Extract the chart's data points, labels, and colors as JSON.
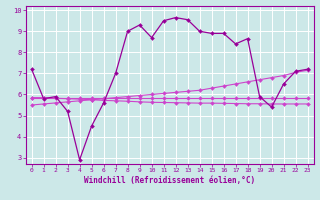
{
  "background_color": "#cce8e8",
  "grid_color": "#ffffff",
  "line_color": "#990099",
  "line_color_diag": "#cc44cc",
  "xlabel": "Windchill (Refroidissement éolien,°C)",
  "xlim": [
    -0.5,
    23.5
  ],
  "ylim": [
    2.7,
    10.2
  ],
  "xticks": [
    0,
    1,
    2,
    3,
    4,
    5,
    6,
    7,
    8,
    9,
    10,
    11,
    12,
    13,
    14,
    15,
    16,
    17,
    18,
    19,
    20,
    21,
    22,
    23
  ],
  "yticks": [
    3,
    4,
    5,
    6,
    7,
    8,
    9,
    10
  ],
  "curve1_x": [
    0,
    1,
    2,
    3,
    4,
    5,
    6,
    7,
    8,
    9,
    10,
    11,
    12,
    13,
    14,
    15,
    16,
    17,
    18,
    19,
    20,
    21,
    22,
    23
  ],
  "curve1_y": [
    7.2,
    5.8,
    5.9,
    5.2,
    2.9,
    4.5,
    5.6,
    7.0,
    9.0,
    9.3,
    8.7,
    9.5,
    9.65,
    9.55,
    9.0,
    8.9,
    8.9,
    8.4,
    8.65,
    5.9,
    5.4,
    6.5,
    7.1,
    7.2
  ],
  "curve2_x": [
    0,
    1,
    2,
    3,
    4,
    5,
    6,
    7,
    8,
    9,
    10,
    11,
    12,
    13,
    14,
    15,
    16,
    17,
    18,
    19,
    20,
    21,
    22,
    23
  ],
  "curve2_y": [
    5.85,
    5.85,
    5.85,
    5.85,
    5.85,
    5.85,
    5.85,
    5.85,
    5.85,
    5.85,
    5.85,
    5.85,
    5.85,
    5.85,
    5.85,
    5.85,
    5.85,
    5.85,
    5.85,
    5.85,
    5.85,
    5.85,
    5.85,
    5.85
  ],
  "curve3_x": [
    0,
    1,
    2,
    3,
    4,
    5,
    6,
    7,
    8,
    9,
    10,
    11,
    12,
    13,
    14,
    15,
    16,
    17,
    18,
    19,
    20,
    21,
    22,
    23
  ],
  "curve3_y": [
    5.5,
    5.55,
    5.6,
    5.65,
    5.7,
    5.75,
    5.8,
    5.85,
    5.9,
    5.95,
    6.0,
    6.05,
    6.1,
    6.15,
    6.2,
    6.3,
    6.4,
    6.5,
    6.6,
    6.7,
    6.8,
    6.9,
    7.05,
    7.15
  ],
  "curve4_x": [
    0,
    1,
    2,
    3,
    4,
    5,
    6,
    7,
    8,
    9,
    10,
    11,
    12,
    13,
    14,
    15,
    16,
    17,
    18,
    19,
    20,
    21,
    22,
    23
  ],
  "curve4_y": [
    5.85,
    5.85,
    5.82,
    5.8,
    5.78,
    5.75,
    5.72,
    5.7,
    5.68,
    5.65,
    5.63,
    5.62,
    5.61,
    5.6,
    5.59,
    5.59,
    5.58,
    5.57,
    5.56,
    5.56,
    5.55,
    5.55,
    5.55,
    5.55
  ]
}
